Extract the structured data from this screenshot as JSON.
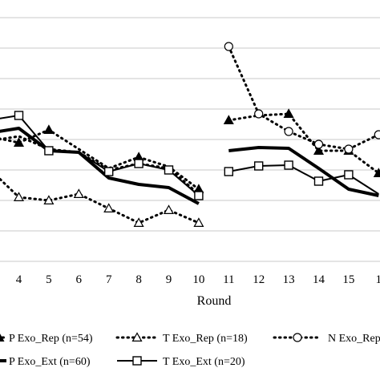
{
  "chart_data": {
    "type": "line",
    "xlabel": "Round",
    "x_ticks": [
      "4",
      "5",
      "6",
      "7",
      "8",
      "9",
      "10",
      "11",
      "12",
      "13",
      "14",
      "15",
      "1"
    ],
    "grid": true,
    "y_gridlines": [
      22,
      60,
      98,
      136,
      174,
      212,
      250,
      288,
      326
    ],
    "legend_placement": "bottom",
    "series": [
      {
        "name": "P Exo_Rep (n=54)",
        "line": "dotted",
        "width": 3,
        "marker": "filled-triangle",
        "segments": [
          [
            [
              3,
              170
            ],
            [
              4,
              178
            ],
            [
              5,
              162
            ],
            [
              6,
              186
            ],
            [
              7,
              210
            ],
            [
              8,
              196
            ],
            [
              9,
              208
            ],
            [
              10,
              236
            ]
          ],
          [
            [
              11,
              150
            ],
            [
              12,
              144
            ],
            [
              13,
              142
            ],
            [
              14,
              188
            ],
            [
              15,
              188
            ],
            [
              16,
              216
            ]
          ]
        ],
        "markers": [
          [
            4,
            178
          ],
          [
            5,
            162
          ],
          [
            8,
            196
          ],
          [
            10,
            236
          ],
          [
            11,
            150
          ],
          [
            13,
            142
          ],
          [
            14,
            188
          ],
          [
            15,
            188
          ],
          [
            16,
            216
          ]
        ]
      },
      {
        "name": "T Exo_Rep (n=18)",
        "line": "dotted",
        "width": 3,
        "marker": "open-triangle",
        "segments": [
          [
            [
              3,
              210
            ],
            [
              4,
              246
            ],
            [
              5,
              250
            ],
            [
              6,
              242
            ],
            [
              7,
              260
            ],
            [
              8,
              278
            ],
            [
              9,
              262
            ],
            [
              10,
              278
            ]
          ]
        ],
        "markers": [
          [
            4,
            246
          ],
          [
            5,
            250
          ],
          [
            6,
            242
          ],
          [
            7,
            260
          ],
          [
            8,
            278
          ],
          [
            9,
            262
          ],
          [
            10,
            278
          ]
        ]
      },
      {
        "name": "N Exo_Rep",
        "line": "dotted",
        "width": 3,
        "marker": "open-circle",
        "segments": [
          [
            [
              3,
              176
            ],
            [
              4,
              170
            ],
            [
              5,
              186
            ],
            [
              6,
              190
            ],
            [
              7,
              212
            ],
            [
              8,
              204
            ],
            [
              9,
              210
            ],
            [
              10,
              242
            ]
          ],
          [
            [
              11,
              58
            ],
            [
              12,
              142
            ],
            [
              13,
              164
            ],
            [
              14,
              180
            ],
            [
              15,
              186
            ],
            [
              16,
              168
            ]
          ]
        ],
        "markers": [
          [
            11,
            58
          ],
          [
            12,
            142
          ],
          [
            13,
            164
          ],
          [
            14,
            180
          ],
          [
            15,
            186
          ],
          [
            16,
            168
          ]
        ]
      },
      {
        "name": "P Exo_Ext (n=60)",
        "line": "solid",
        "width": 4,
        "marker": "none",
        "segments": [
          [
            [
              3,
              166
            ],
            [
              4,
              160
            ],
            [
              5,
              188
            ],
            [
              6,
              190
            ],
            [
              7,
              222
            ],
            [
              8,
              230
            ],
            [
              9,
              234
            ],
            [
              10,
              254
            ]
          ],
          [
            [
              11,
              188
            ],
            [
              12,
              184
            ],
            [
              13,
              185
            ],
            [
              14,
              210
            ],
            [
              15,
              236
            ],
            [
              16,
              244
            ]
          ]
        ],
        "markers": []
      },
      {
        "name": "T Exo_Ext (n=20)",
        "line": "solid",
        "width": 2,
        "marker": "open-square",
        "segments": [
          [
            [
              3,
              150
            ],
            [
              4,
              144
            ],
            [
              5,
              188
            ],
            [
              6,
              190
            ],
            [
              7,
              214
            ],
            [
              8,
              204
            ],
            [
              9,
              212
            ],
            [
              10,
              244
            ]
          ],
          [
            [
              11,
              214
            ],
            [
              12,
              207
            ],
            [
              13,
              206
            ],
            [
              14,
              226
            ],
            [
              15,
              218
            ],
            [
              16,
              242
            ]
          ]
        ],
        "markers": [
          [
            4,
            144
          ],
          [
            5,
            188
          ],
          [
            7,
            214
          ],
          [
            8,
            204
          ],
          [
            9,
            212
          ],
          [
            10,
            244
          ],
          [
            11,
            214
          ],
          [
            12,
            207
          ],
          [
            13,
            206
          ],
          [
            14,
            226
          ],
          [
            15,
            218
          ]
        ]
      }
    ]
  }
}
